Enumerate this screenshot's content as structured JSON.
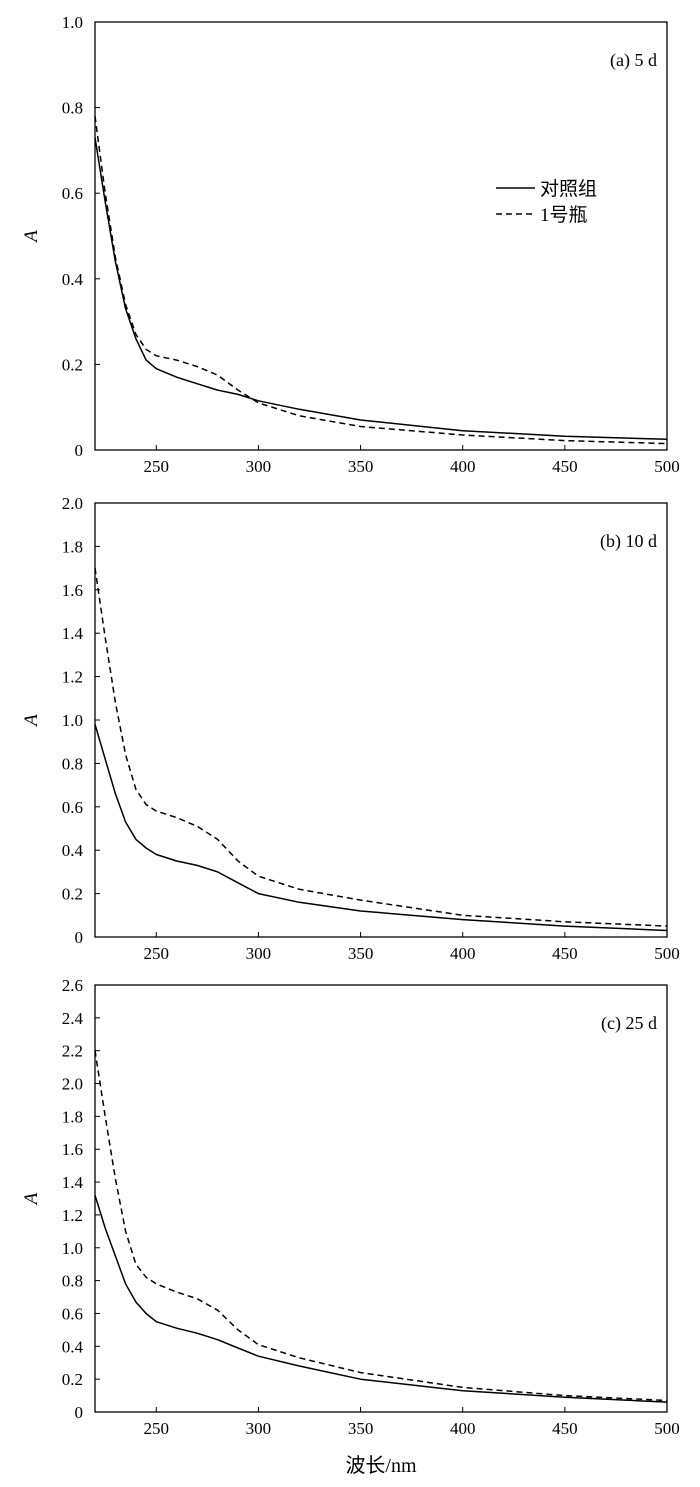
{
  "xlabel": "波长/nm",
  "legend": {
    "control": "对照组",
    "bottle1": "1号瓶"
  },
  "colors": {
    "line": "#000000"
  },
  "chart_data": [
    {
      "type": "line",
      "panel": "(a) 5 d",
      "ylabel": "A",
      "xlim": [
        220,
        500
      ],
      "ylim": [
        0,
        1.0
      ],
      "xticks": [
        250,
        300,
        350,
        400,
        450,
        500
      ],
      "yticks": [
        0,
        0.2,
        0.4,
        0.6,
        0.8,
        1.0
      ],
      "ytick_labels": [
        "0",
        "0.2",
        "0.4",
        "0.6",
        "0.8",
        "1.0"
      ],
      "legend_position": "upper-right",
      "show_legend": true,
      "series": [
        {
          "name": "对照组",
          "style": "solid",
          "x": [
            220,
            225,
            230,
            235,
            240,
            245,
            250,
            260,
            270,
            280,
            290,
            300,
            320,
            350,
            400,
            450,
            500
          ],
          "y": [
            0.73,
            0.58,
            0.44,
            0.33,
            0.26,
            0.21,
            0.19,
            0.17,
            0.155,
            0.14,
            0.13,
            0.115,
            0.095,
            0.07,
            0.045,
            0.032,
            0.025
          ]
        },
        {
          "name": "1号瓶",
          "style": "dashed",
          "x": [
            220,
            225,
            230,
            235,
            240,
            245,
            250,
            260,
            270,
            280,
            290,
            300,
            320,
            350,
            400,
            450,
            500
          ],
          "y": [
            0.78,
            0.6,
            0.45,
            0.34,
            0.27,
            0.235,
            0.22,
            0.21,
            0.195,
            0.175,
            0.14,
            0.11,
            0.08,
            0.055,
            0.035,
            0.022,
            0.015
          ]
        }
      ]
    },
    {
      "type": "line",
      "panel": "(b) 10 d",
      "ylabel": "A",
      "xlim": [
        220,
        500
      ],
      "ylim": [
        0,
        2.0
      ],
      "xticks": [
        250,
        300,
        350,
        400,
        450,
        500
      ],
      "yticks": [
        0,
        0.2,
        0.4,
        0.6,
        0.8,
        1.0,
        1.2,
        1.4,
        1.6,
        1.8,
        2.0
      ],
      "ytick_labels": [
        "0",
        "0.2",
        "0.4",
        "0.6",
        "0.8",
        "1.0",
        "1.2",
        "1.4",
        "1.6",
        "1.8",
        "2.0"
      ],
      "show_legend": false,
      "series": [
        {
          "style": "solid",
          "x": [
            220,
            225,
            230,
            235,
            240,
            245,
            250,
            260,
            270,
            280,
            290,
            300,
            320,
            350,
            400,
            450,
            500
          ],
          "y": [
            0.98,
            0.82,
            0.66,
            0.53,
            0.45,
            0.41,
            0.38,
            0.35,
            0.33,
            0.3,
            0.25,
            0.2,
            0.16,
            0.12,
            0.08,
            0.05,
            0.03
          ]
        },
        {
          "style": "dashed",
          "x": [
            220,
            225,
            230,
            235,
            240,
            245,
            250,
            260,
            270,
            280,
            290,
            300,
            320,
            350,
            400,
            450,
            500
          ],
          "y": [
            1.7,
            1.38,
            1.08,
            0.84,
            0.68,
            0.61,
            0.58,
            0.55,
            0.51,
            0.45,
            0.35,
            0.28,
            0.22,
            0.17,
            0.1,
            0.07,
            0.05
          ]
        }
      ]
    },
    {
      "type": "line",
      "panel": "(c) 25 d",
      "ylabel": "A",
      "xlim": [
        220,
        500
      ],
      "ylim": [
        0,
        2.6
      ],
      "xticks": [
        250,
        300,
        350,
        400,
        450,
        500
      ],
      "yticks": [
        0,
        0.2,
        0.4,
        0.6,
        0.8,
        1.0,
        1.2,
        1.4,
        1.6,
        1.8,
        2.0,
        2.2,
        2.4,
        2.6
      ],
      "ytick_labels": [
        "0",
        "0.2",
        "0.4",
        "0.6",
        "0.8",
        "1.0",
        "1.2",
        "1.4",
        "1.6",
        "1.8",
        "2.0",
        "2.2",
        "2.4",
        "2.6"
      ],
      "show_legend": false,
      "series": [
        {
          "style": "solid",
          "x": [
            220,
            225,
            230,
            235,
            240,
            245,
            250,
            260,
            270,
            280,
            290,
            300,
            320,
            350,
            400,
            450,
            500
          ],
          "y": [
            1.32,
            1.12,
            0.95,
            0.78,
            0.67,
            0.6,
            0.55,
            0.51,
            0.48,
            0.44,
            0.39,
            0.34,
            0.28,
            0.2,
            0.13,
            0.09,
            0.06
          ]
        },
        {
          "style": "dashed",
          "x": [
            220,
            225,
            230,
            235,
            240,
            245,
            250,
            260,
            270,
            280,
            290,
            300,
            320,
            350,
            400,
            450,
            500
          ],
          "y": [
            2.2,
            1.8,
            1.42,
            1.1,
            0.9,
            0.82,
            0.78,
            0.73,
            0.69,
            0.62,
            0.5,
            0.41,
            0.33,
            0.24,
            0.15,
            0.1,
            0.07
          ]
        }
      ]
    }
  ]
}
